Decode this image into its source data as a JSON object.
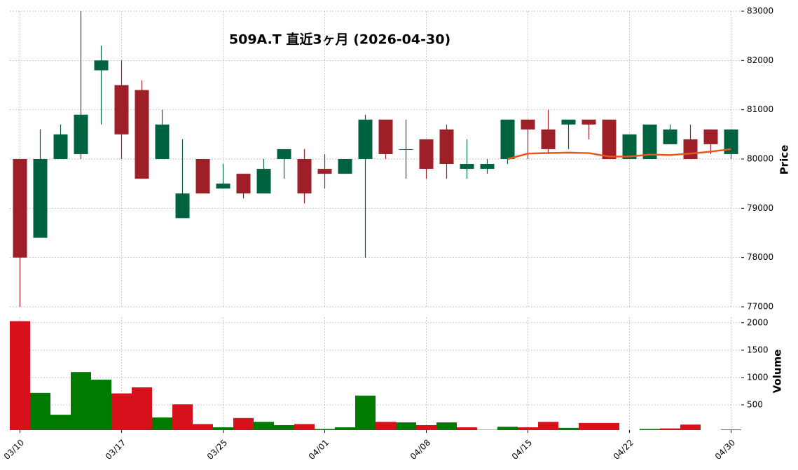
{
  "chart_data": [
    {
      "type": "candlestick",
      "title": "509A.T 直近3ヶ月 (2026-04-30)",
      "y_label": "Price",
      "categories": [
        "03/10",
        null,
        null,
        null,
        null,
        "03/17",
        null,
        null,
        null,
        null,
        "03/25",
        null,
        null,
        null,
        null,
        "04/01",
        null,
        null,
        null,
        null,
        "04/08",
        null,
        null,
        null,
        null,
        "04/15",
        null,
        null,
        null,
        null,
        "04/22",
        null,
        null,
        null,
        null,
        "04/30"
      ],
      "open": [
        80000,
        78400,
        80000,
        80100,
        81800,
        81500,
        81400,
        80000,
        78800,
        80000,
        79400,
        79700,
        79300,
        80000,
        80000,
        79800,
        79700,
        80000,
        80800,
        80200,
        80400,
        80600,
        79800,
        79800,
        80000,
        80800,
        80600,
        80700,
        80800,
        80800,
        80000,
        80000,
        80300,
        80400,
        80600,
        80100
      ],
      "high": [
        80000,
        80600,
        80700,
        83000,
        82300,
        82000,
        81600,
        81000,
        80400,
        80000,
        79900,
        79700,
        80000,
        80200,
        80200,
        80100,
        80000,
        80900,
        80800,
        80800,
        80400,
        80700,
        80400,
        80000,
        80800,
        80800,
        81000,
        80800,
        80800,
        80800,
        80500,
        80700,
        80700,
        80700,
        80600,
        80600
      ],
      "low": [
        77000,
        78400,
        80000,
        80000,
        80700,
        80000,
        79600,
        80000,
        78800,
        79300,
        79400,
        79200,
        79300,
        79600,
        79100,
        79400,
        79700,
        78000,
        80000,
        79600,
        79600,
        79600,
        79600,
        79700,
        79900,
        80000,
        80100,
        80200,
        80400,
        80000,
        80000,
        80000,
        80300,
        80000,
        80100,
        80000
      ],
      "close": [
        78000,
        80000,
        80500,
        80900,
        82000,
        80500,
        79600,
        80700,
        79300,
        79300,
        79500,
        79300,
        79800,
        80200,
        79300,
        79700,
        80000,
        80800,
        80100,
        80200,
        79800,
        79900,
        79900,
        79900,
        80800,
        80600,
        80200,
        80800,
        80700,
        80000,
        80500,
        80700,
        80600,
        80000,
        80300,
        80600
      ],
      "up_color": "#006340",
      "down_color": "#9e1f28",
      "line": {
        "color": "#e8561c",
        "values": [
          null,
          null,
          null,
          null,
          null,
          null,
          null,
          null,
          null,
          null,
          null,
          null,
          null,
          null,
          null,
          null,
          null,
          null,
          null,
          null,
          null,
          null,
          null,
          null,
          80000,
          80110,
          80120,
          80130,
          80120,
          80050,
          80050,
          80090,
          80080,
          80110,
          80150,
          80200
        ]
      },
      "ylim": [
        77000,
        83000
      ],
      "yticks": [
        77000,
        78000,
        79000,
        80000,
        81000,
        82000,
        83000
      ],
      "grid": true
    },
    {
      "type": "bar",
      "y_label": "Volume",
      "values": [
        2030,
        720,
        320,
        1100,
        960,
        710,
        820,
        270,
        510,
        150,
        90,
        260,
        190,
        130,
        150,
        60,
        90,
        670,
        190,
        180,
        130,
        180,
        90,
        45,
        100,
        90,
        190,
        80,
        170,
        170,
        40,
        60,
        70,
        140,
        40,
        50
      ],
      "colors": [
        "#d7111b",
        "#007a00",
        "#007a00",
        "#007a00",
        "#007a00",
        "#d7111b",
        "#d7111b",
        "#007a00",
        "#d7111b",
        "#d7111b",
        "#007a00",
        "#d7111b",
        "#007a00",
        "#007a00",
        "#d7111b",
        "#007a00",
        "#007a00",
        "#007a00",
        "#d7111b",
        "#007a00",
        "#d7111b",
        "#007a00",
        "#d7111b",
        "#d7111b",
        "#007a00",
        "#d7111b",
        "#d7111b",
        "#007a00",
        "#d7111b",
        "#d7111b",
        "#007a00",
        "#007a00",
        "#d7111b",
        "#d7111b",
        "#d7111b",
        "#007a00"
      ],
      "ylim": [
        40,
        2100
      ],
      "yticks": [
        500,
        1000,
        1500,
        2000
      ],
      "grid": true
    }
  ]
}
